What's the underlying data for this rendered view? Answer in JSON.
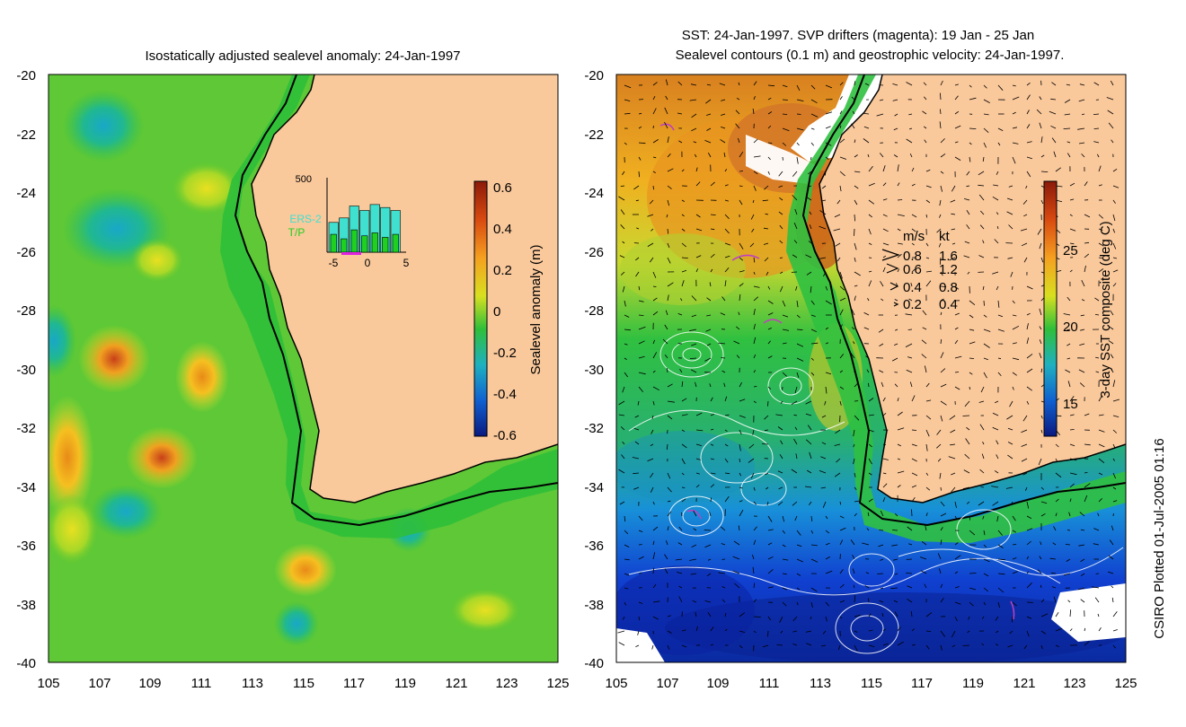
{
  "left_panel": {
    "title": "Isostatically adjusted sealevel anomaly: 24-Jan-1997",
    "y_ticks": [
      "-20",
      "-22",
      "-24",
      "-26",
      "-28",
      "-30",
      "-32",
      "-34",
      "-36",
      "-38",
      "-40"
    ],
    "x_ticks": [
      "105",
      "107",
      "109",
      "111",
      "113",
      "115",
      "117",
      "119",
      "121",
      "123",
      "125"
    ],
    "colorbar": {
      "label": "Sealevel anomaly (m)",
      "ticks": [
        "0.6",
        "0.4",
        "0.2",
        "0",
        "-0.2",
        "-0.4",
        "-0.6"
      ],
      "colors": [
        "#8b1a0a",
        "#d84a10",
        "#f5a020",
        "#d8e020",
        "#2fbf3a",
        "#1fb0c0",
        "#1060d0",
        "#0a1a80"
      ]
    },
    "inset": {
      "y_tick": "500",
      "x_ticks": [
        "-5",
        "0",
        "5"
      ],
      "legend": [
        "ERS-2",
        "T/P"
      ],
      "legend_colors": [
        "#40e0d0",
        "#20d020"
      ],
      "ers2_counts": [
        200,
        230,
        310,
        280,
        320,
        300,
        280
      ],
      "tp_counts": [
        120,
        90,
        150,
        110,
        130,
        100,
        120
      ]
    }
  },
  "right_panel": {
    "title_line1": "SST: 24-Jan-1997. SVP drifters (magenta): 19 Jan - 25 Jan",
    "title_line2": "Sealevel contours (0.1 m) and geostrophic velocity: 24-Jan-1997.",
    "y_ticks": [
      "-20",
      "-22",
      "-24",
      "-26",
      "-28",
      "-30",
      "-32",
      "-34",
      "-36",
      "-38",
      "-40"
    ],
    "x_ticks": [
      "105",
      "107",
      "109",
      "111",
      "113",
      "115",
      "117",
      "119",
      "121",
      "123",
      "125"
    ],
    "speed_legend": {
      "header_ms": "m/s",
      "header_kt": "kt",
      "rows": [
        {
          "ms": "0.8",
          "kt": "1.6"
        },
        {
          "ms": "0.6",
          "kt": "1.2"
        },
        {
          "ms": "0.4",
          "kt": "0.8"
        },
        {
          "ms": "0.2",
          "kt": "0.4"
        }
      ]
    },
    "colorbar": {
      "label": "3-day SST composite (deg C)",
      "ticks": [
        "25",
        "20",
        "15"
      ],
      "colors": [
        "#8b1a0a",
        "#d84a10",
        "#f5a020",
        "#d8e020",
        "#2fbf3a",
        "#1fb0c0",
        "#1060d0",
        "#0a1a80"
      ]
    }
  },
  "footer": "CSIRO Plotted 01-Jul-2005 01:16",
  "colors": {
    "land": "#f9c89b",
    "shelf_green": "#39c23a",
    "drifter_magenta": "#c040c0"
  }
}
